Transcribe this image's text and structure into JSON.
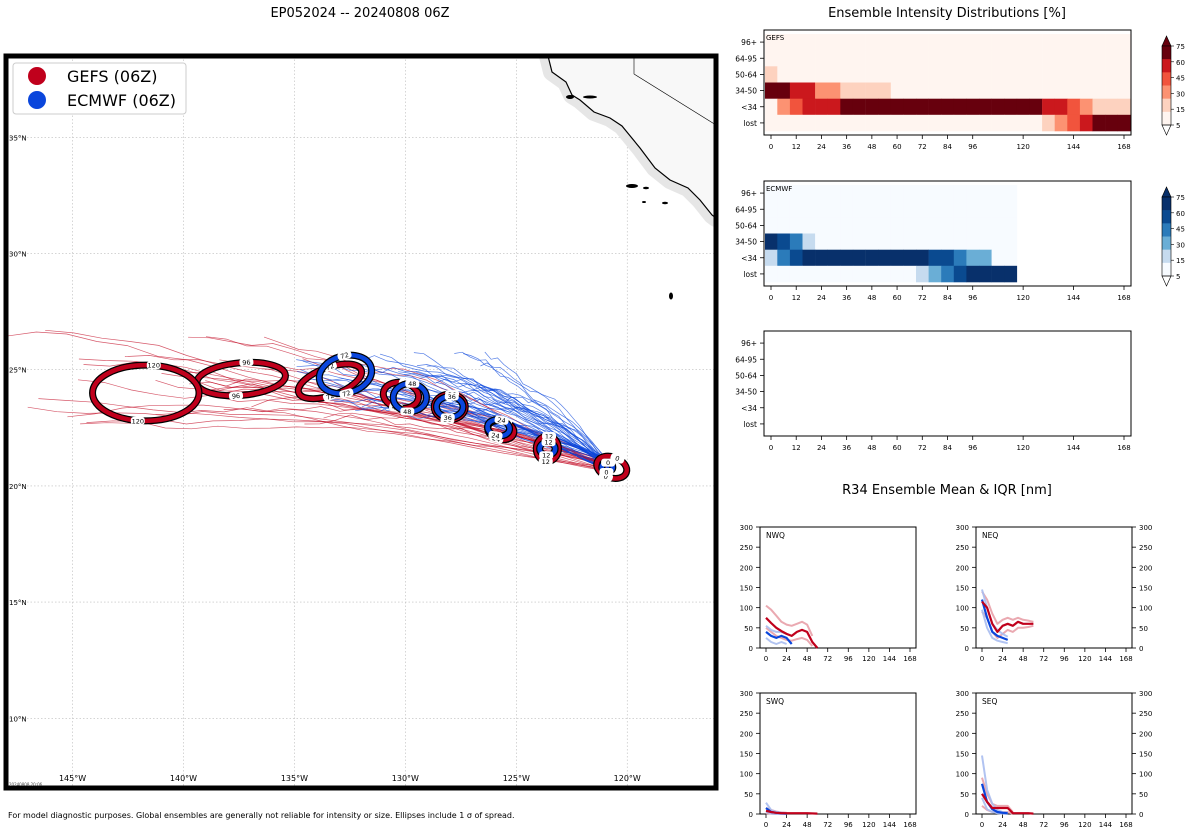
{
  "title": "EP052024 -- 20240808 06Z",
  "footer": "For model diagnostic purposes. Global ensembles are generally not reliable for intensity or size. Ellipses include 1 σ of spread.",
  "colors": {
    "gefs": "#c0001c",
    "ecmwf": "#0a46dc",
    "gefs_light": "#e8a0a8",
    "ecmwf_light": "#a8bcf0"
  },
  "map": {
    "lat_labels": [
      "35°N",
      "30°N",
      "25°N",
      "20°N",
      "15°N",
      "10°N"
    ],
    "lon_labels": [
      "145°W",
      "140°W",
      "135°W",
      "130°W",
      "125°W",
      "120°W"
    ],
    "lat_values": [
      35,
      30,
      25,
      20,
      15,
      10
    ],
    "lon_values": [
      -145,
      -140,
      -135,
      -130,
      -125,
      -120
    ],
    "extent": {
      "lon_min": -148,
      "lon_max": -116,
      "lat_min": 7,
      "lat_max": 38.5
    },
    "stamp": "20240808 20:06",
    "legend": [
      {
        "label": "GEFS (06Z)",
        "color": "#c0001c"
      },
      {
        "label": "ECMWF (06Z)",
        "color": "#0a46dc"
      }
    ],
    "gefs_ellipses": [
      {
        "hour": "0",
        "lon": -120.7,
        "lat": 20.8,
        "rx_deg": 0.7,
        "ry_deg": 0.45,
        "rot": 20
      },
      {
        "hour": "12",
        "lon": -123.6,
        "lat": 21.6,
        "rx_deg": 0.5,
        "ry_deg": 0.55,
        "rot": 0
      },
      {
        "hour": "24",
        "lon": -125.7,
        "lat": 22.4,
        "rx_deg": 0.6,
        "ry_deg": 0.4,
        "rot": 15
      },
      {
        "hour": "36",
        "lon": -128.0,
        "lat": 23.4,
        "rx_deg": 0.7,
        "ry_deg": 0.55,
        "rot": 0
      },
      {
        "hour": "48",
        "lon": -130.2,
        "lat": 23.9,
        "rx_deg": 0.8,
        "ry_deg": 0.55,
        "rot": 10
      },
      {
        "hour": "72",
        "lon": -133.4,
        "lat": 24.5,
        "rx_deg": 1.5,
        "ry_deg": 0.6,
        "rot": -20
      },
      {
        "hour": "96",
        "lon": -137.4,
        "lat": 24.6,
        "rx_deg": 2.0,
        "ry_deg": 0.7,
        "rot": -5
      },
      {
        "hour": "120",
        "lon": -141.7,
        "lat": 24.0,
        "rx_deg": 2.4,
        "ry_deg": 1.2,
        "rot": 0
      }
    ],
    "ecmwf_ellipses": [
      {
        "hour": "0",
        "lon": -120.9,
        "lat": 20.8,
        "rx_deg": 0.25,
        "ry_deg": 0.2,
        "rot": 0
      },
      {
        "hour": "12",
        "lon": -123.6,
        "lat": 21.6,
        "rx_deg": 0.35,
        "ry_deg": 0.28,
        "rot": 0
      },
      {
        "hour": "24",
        "lon": -125.8,
        "lat": 22.5,
        "rx_deg": 0.5,
        "ry_deg": 0.35,
        "rot": 10
      },
      {
        "hour": "36",
        "lon": -128.0,
        "lat": 23.4,
        "rx_deg": 0.6,
        "ry_deg": 0.45,
        "rot": 0
      },
      {
        "hour": "48",
        "lon": -129.8,
        "lat": 23.8,
        "rx_deg": 0.75,
        "ry_deg": 0.6,
        "rot": 0
      },
      {
        "hour": "72",
        "lon": -132.7,
        "lat": 24.8,
        "rx_deg": 1.2,
        "ry_deg": 0.8,
        "rot": -15
      }
    ]
  },
  "intensity": {
    "title": "Ensemble Intensity Distributions [%]",
    "row_labels": [
      "96+",
      "64-95",
      "50-64",
      "34-50",
      "<34",
      "lost"
    ],
    "x_ticks": [
      0,
      12,
      24,
      36,
      48,
      60,
      72,
      84,
      96,
      120,
      144,
      168
    ],
    "panels": [
      {
        "name": "GEFS",
        "palette": "reds",
        "hours": [
          0,
          6,
          12,
          18,
          24,
          30,
          36,
          42,
          48,
          54,
          60,
          66,
          72,
          78,
          84,
          90,
          96,
          102,
          108,
          114,
          120,
          126,
          132,
          138,
          144,
          150,
          156,
          162,
          168
        ],
        "grid": [
          [
            0,
            0,
            0,
            0,
            0,
            0,
            0,
            0,
            0,
            0,
            0,
            0,
            0,
            0,
            0,
            0,
            0,
            0,
            0,
            0,
            0,
            0,
            0,
            0,
            0,
            0,
            0,
            0,
            0
          ],
          [
            0,
            0,
            0,
            0,
            0,
            0,
            0,
            0,
            0,
            0,
            0,
            0,
            0,
            0,
            0,
            0,
            0,
            0,
            0,
            0,
            0,
            0,
            0,
            0,
            0,
            0,
            0,
            0,
            0
          ],
          [
            8,
            0,
            0,
            0,
            0,
            0,
            0,
            0,
            0,
            0,
            0,
            0,
            0,
            0,
            0,
            0,
            0,
            0,
            0,
            0,
            0,
            0,
            0,
            0,
            0,
            0,
            0,
            0,
            0
          ],
          [
            92,
            80,
            55,
            50,
            28,
            28,
            12,
            12,
            12,
            12,
            0,
            0,
            0,
            0,
            0,
            0,
            0,
            0,
            0,
            0,
            0,
            0,
            0,
            0,
            0,
            0,
            0,
            0,
            0
          ],
          [
            0,
            16,
            38,
            50,
            65,
            70,
            88,
            88,
            88,
            88,
            95,
            95,
            95,
            95,
            95,
            95,
            95,
            95,
            95,
            95,
            95,
            80,
            60,
            60,
            45,
            22,
            14,
            14,
            14
          ],
          [
            0,
            0,
            0,
            0,
            0,
            0,
            0,
            0,
            0,
            0,
            0,
            0,
            0,
            0,
            0,
            0,
            0,
            0,
            0,
            0,
            0,
            0,
            12,
            20,
            30,
            55,
            80,
            80,
            80
          ]
        ],
        "colorbar_ticks": [
          "75",
          "60",
          "45",
          "30",
          "15",
          "5"
        ]
      },
      {
        "name": "ECMWF",
        "palette": "blues",
        "hours": [
          0,
          6,
          12,
          18,
          24,
          30,
          36,
          42,
          48,
          54,
          60,
          66,
          72,
          78,
          84,
          90,
          96,
          102,
          108,
          114
        ],
        "grid": [
          [
            0,
            0,
            0,
            0,
            0,
            0,
            0,
            0,
            0,
            0,
            0,
            0,
            0,
            0,
            0,
            0,
            0,
            0,
            0,
            0
          ],
          [
            0,
            0,
            0,
            0,
            0,
            0,
            0,
            0,
            0,
            0,
            0,
            0,
            0,
            0,
            0,
            0,
            0,
            0,
            0,
            0
          ],
          [
            0,
            0,
            0,
            0,
            0,
            0,
            0,
            0,
            0,
            0,
            0,
            0,
            0,
            0,
            0,
            0,
            0,
            0,
            0,
            0
          ],
          [
            92,
            55,
            30,
            12,
            0,
            0,
            0,
            0,
            0,
            0,
            0,
            0,
            0,
            0,
            0,
            0,
            0,
            0,
            0,
            0
          ],
          [
            8,
            45,
            70,
            88,
            96,
            96,
            96,
            96,
            96,
            96,
            96,
            96,
            96,
            70,
            50,
            30,
            18,
            18,
            0,
            0
          ],
          [
            0,
            0,
            0,
            0,
            0,
            0,
            0,
            0,
            0,
            0,
            0,
            0,
            8,
            18,
            40,
            70,
            82,
            82,
            82,
            82
          ]
        ],
        "colorbar_ticks": [
          "75",
          "60",
          "45",
          "30",
          "15",
          "5"
        ]
      },
      {
        "name": "",
        "palette": "none",
        "hours": [],
        "grid": []
      }
    ]
  },
  "r34": {
    "title": "R34 Ensemble Mean & IQR [nm]",
    "y_ticks": [
      0,
      50,
      100,
      150,
      200,
      250,
      300
    ],
    "x_ticks": [
      0,
      24,
      48,
      72,
      96,
      120,
      144,
      168
    ],
    "panels": [
      {
        "name": "NWQ",
        "side": "left",
        "gefs_x": [
          0,
          6,
          12,
          18,
          24,
          30,
          36,
          42,
          48,
          54,
          60
        ],
        "gefs_y": [
          75,
          62,
          50,
          42,
          35,
          30,
          40,
          45,
          40,
          15,
          0
        ],
        "gefs_hi_x": [
          0,
          6,
          12,
          18,
          24,
          30,
          36,
          42,
          48,
          54
        ],
        "gefs_hi_y": [
          105,
          95,
          80,
          65,
          58,
          55,
          60,
          65,
          58,
          30
        ],
        "gefs_lo_x": [
          0,
          6,
          12,
          18,
          24,
          30,
          36,
          42,
          48,
          54
        ],
        "gefs_lo_y": [
          50,
          40,
          30,
          25,
          20,
          18,
          22,
          25,
          20,
          5
        ],
        "ecmwf_x": [
          0,
          6,
          12,
          18,
          24,
          30
        ],
        "ecmwf_y": [
          40,
          30,
          25,
          30,
          25,
          10
        ],
        "ecmwf_hi_x": [
          0,
          6,
          12,
          18,
          24
        ],
        "ecmwf_hi_y": [
          55,
          45,
          40,
          40,
          35
        ],
        "ecmwf_lo_x": [
          0,
          6,
          12,
          18,
          24
        ],
        "ecmwf_lo_y": [
          25,
          15,
          10,
          15,
          10
        ]
      },
      {
        "name": "NEQ",
        "side": "right",
        "gefs_x": [
          0,
          6,
          12,
          18,
          24,
          30,
          36,
          42,
          48,
          54,
          60
        ],
        "gefs_y": [
          115,
          100,
          60,
          40,
          55,
          60,
          55,
          65,
          60,
          60,
          60
        ],
        "gefs_hi_x": [
          0,
          6,
          12,
          18,
          24,
          30,
          36,
          42,
          48,
          54,
          60
        ],
        "gefs_hi_y": [
          140,
          120,
          85,
          60,
          70,
          75,
          70,
          75,
          70,
          68,
          65
        ],
        "gefs_lo_x": [
          0,
          6,
          12,
          18,
          24,
          30,
          36,
          42,
          48,
          54,
          60
        ],
        "gefs_lo_y": [
          90,
          75,
          40,
          25,
          35,
          45,
          40,
          50,
          50,
          52,
          55
        ],
        "ecmwf_x": [
          0,
          6,
          12,
          18,
          24,
          30
        ],
        "ecmwf_y": [
          120,
          75,
          40,
          30,
          25,
          20
        ],
        "ecmwf_hi_x": [
          0,
          6,
          12,
          18,
          24,
          30
        ],
        "ecmwf_hi_y": [
          145,
          100,
          60,
          45,
          35,
          28
        ],
        "ecmwf_lo_x": [
          0,
          6,
          12,
          18,
          24,
          30
        ],
        "ecmwf_lo_y": [
          95,
          50,
          25,
          18,
          15,
          12
        ]
      },
      {
        "name": "SWQ",
        "side": "left",
        "gefs_x": [
          0,
          6,
          12,
          18,
          24,
          36,
          48,
          60
        ],
        "gefs_y": [
          8,
          5,
          3,
          2,
          2,
          2,
          2,
          1
        ],
        "gefs_hi_x": [
          0,
          6,
          12,
          18,
          24
        ],
        "gefs_hi_y": [
          15,
          10,
          6,
          4,
          3
        ],
        "gefs_lo_x": [
          0,
          6,
          12,
          18,
          24
        ],
        "gefs_lo_y": [
          2,
          1,
          0,
          0,
          0
        ],
        "ecmwf_x": [
          0,
          6,
          12,
          18,
          24
        ],
        "ecmwf_y": [
          15,
          5,
          3,
          2,
          1
        ],
        "ecmwf_hi_x": [
          0,
          6,
          12,
          18,
          24
        ],
        "ecmwf_hi_y": [
          28,
          10,
          5,
          3,
          2
        ],
        "ecmwf_lo_x": [
          0,
          6,
          12,
          18,
          24
        ],
        "ecmwf_lo_y": [
          5,
          1,
          0,
          0,
          0
        ]
      },
      {
        "name": "SEQ",
        "side": "right",
        "gefs_x": [
          0,
          6,
          12,
          18,
          24,
          30,
          36,
          42,
          48,
          54,
          60
        ],
        "gefs_y": [
          50,
          30,
          15,
          15,
          15,
          15,
          2,
          2,
          2,
          2,
          1
        ],
        "gefs_hi_x": [
          0,
          6,
          12,
          18,
          24,
          30,
          36
        ],
        "gefs_hi_y": [
          90,
          50,
          25,
          20,
          20,
          20,
          5
        ],
        "gefs_lo_x": [
          0,
          6,
          12,
          18,
          24,
          30,
          36
        ],
        "gefs_lo_y": [
          20,
          10,
          5,
          5,
          5,
          5,
          0
        ],
        "ecmwf_x": [
          0,
          6,
          12,
          18,
          24,
          30
        ],
        "ecmwf_y": [
          75,
          30,
          12,
          5,
          3,
          2
        ],
        "ecmwf_hi_x": [
          0,
          6,
          12,
          18,
          24,
          30
        ],
        "ecmwf_hi_y": [
          145,
          60,
          25,
          10,
          5,
          3
        ],
        "ecmwf_lo_x": [
          0,
          6,
          12,
          18,
          24,
          30
        ],
        "ecmwf_lo_y": [
          40,
          12,
          5,
          2,
          1,
          0
        ]
      }
    ]
  }
}
